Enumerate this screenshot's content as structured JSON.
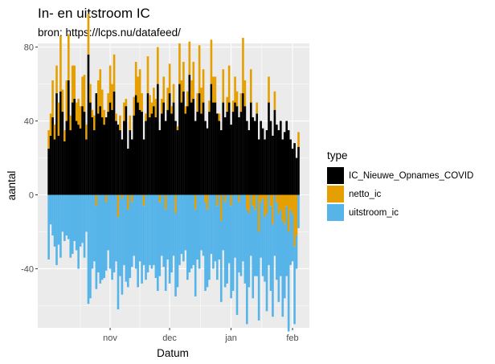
{
  "title": "In- en uitstroom IC",
  "subtitle": "bron: https://lcps.nu/datafeed/",
  "legend": {
    "title": "type",
    "items": [
      {
        "label": "IC_Nieuwe_Opnames_COVID",
        "color": "#000000"
      },
      {
        "label": "netto_ic",
        "color": "#E69F00"
      },
      {
        "label": "uitstroom_ic",
        "color": "#56B4E9"
      }
    ]
  },
  "chart_data": {
    "type": "bar",
    "title": "In- en uitstroom IC",
    "subtitle": "bron: https://lcps.nu/datafeed/",
    "xlabel": "Datum",
    "ylabel": "aantal",
    "ylim": [
      -72,
      82
    ],
    "y_ticks": [
      -40,
      0,
      40,
      80
    ],
    "x_ticks": [
      {
        "label": "nov",
        "date": "2021-11-01"
      },
      {
        "label": "dec",
        "date": "2021-12-01"
      },
      {
        "label": "jan",
        "date": "2022-01-01"
      },
      {
        "label": "feb",
        "date": "2022-02-01"
      }
    ],
    "grid": true,
    "legend_position": "right",
    "x_start": "2021-10-01",
    "series": [
      {
        "name": "IC_Nieuwe_Opnames_COVID",
        "color": "#000000",
        "values": [
          25,
          32,
          42,
          30,
          55,
          32,
          56,
          45,
          29,
          40,
          62,
          35,
          50,
          52,
          40,
          38,
          36,
          48,
          45,
          30,
          76,
          50,
          42,
          35,
          55,
          44,
          48,
          42,
          38,
          42,
          45,
          50,
          46,
          56,
          40,
          38,
          35,
          30,
          40,
          48,
          25,
          35,
          30,
          43,
          54,
          50,
          46,
          45,
          30,
          40,
          55,
          42,
          44,
          48,
          42,
          60,
          35,
          44,
          50,
          40,
          46,
          55,
          44,
          50,
          40,
          35,
          60,
          50,
          56,
          44,
          48,
          65,
          50,
          52,
          40,
          45,
          55,
          44,
          50,
          40,
          36,
          45,
          60,
          50,
          50,
          44,
          40,
          35,
          50,
          42,
          45,
          50,
          38,
          45,
          50,
          48,
          42,
          45,
          55,
          48,
          40,
          35,
          50,
          42,
          40,
          44,
          30,
          40,
          36,
          30,
          35,
          50,
          40,
          32,
          46,
          38,
          35,
          40,
          30,
          34,
          40,
          35,
          30,
          25,
          28,
          20,
          26
        ]
      },
      {
        "name": "netto_ic",
        "color": "#E69F00",
        "values": [
          10,
          12,
          20,
          8,
          15,
          18,
          30,
          12,
          6,
          22,
          25,
          8,
          20,
          18,
          10,
          14,
          12,
          16,
          20,
          8,
          22,
          10,
          4,
          8,
          -6,
          18,
          20,
          15,
          8,
          -4,
          10,
          20,
          14,
          20,
          4,
          -12,
          8,
          -2,
          10,
          4,
          -8,
          8,
          -4,
          10,
          18,
          14,
          22,
          10,
          -6,
          4,
          20,
          12,
          6,
          10,
          10,
          20,
          -4,
          8,
          14,
          -8,
          12,
          16,
          4,
          10,
          -10,
          2,
          22,
          12,
          16,
          4,
          8,
          18,
          12,
          20,
          -8,
          10,
          26,
          14,
          18,
          -4,
          -8,
          6,
          24,
          14,
          14,
          -6,
          4,
          -14,
          18,
          -4,
          8,
          20,
          -6,
          6,
          14,
          8,
          -4,
          10,
          30,
          14,
          -8,
          -10,
          18,
          -6,
          -8,
          6,
          -20,
          -4,
          -2,
          -12,
          -10,
          14,
          -6,
          -16,
          10,
          -4,
          -10,
          -8,
          -14,
          -16,
          -6,
          -20,
          -8,
          -10,
          -28,
          -22,
          8
        ]
      },
      {
        "name": "uitstroom_ic",
        "color": "#56B4E9",
        "values": [
          -35,
          -16,
          -22,
          -28,
          -38,
          -27,
          -34,
          -20,
          -25,
          -22,
          -24,
          -34,
          -32,
          -25,
          -30,
          -40,
          -28,
          -26,
          -34,
          -20,
          -59,
          -56,
          -40,
          -36,
          -45,
          -42,
          -48,
          -46,
          -45,
          -37,
          -30,
          -40,
          -46,
          -42,
          -36,
          -50,
          -44,
          -52,
          -38,
          -47,
          -42,
          -45,
          -35,
          -33,
          -40,
          -50,
          -36,
          -48,
          -32,
          -46,
          -42,
          -38,
          -40,
          -38,
          -45,
          -52,
          -40,
          -33,
          -39,
          -44,
          -35,
          -48,
          -42,
          -33,
          -45,
          -50,
          -38,
          -32,
          -36,
          -30,
          -46,
          -42,
          -40,
          -38,
          -47,
          -35,
          -40,
          -30,
          -33,
          -48,
          -42,
          -46,
          -32,
          -40,
          -36,
          -40,
          -35,
          -44,
          -30,
          -46,
          -48,
          -37,
          -50,
          -52,
          -34,
          -65,
          -38,
          -44,
          -36,
          -48,
          -62,
          -40,
          -33,
          -50,
          -36,
          -44,
          -48,
          -30,
          -42,
          -35,
          -53,
          -38,
          -46,
          -50,
          -33,
          -42,
          -48,
          -36,
          -52,
          -40,
          -38,
          -54,
          -30,
          -26,
          -42,
          -18,
          -18
        ]
      }
    ]
  }
}
